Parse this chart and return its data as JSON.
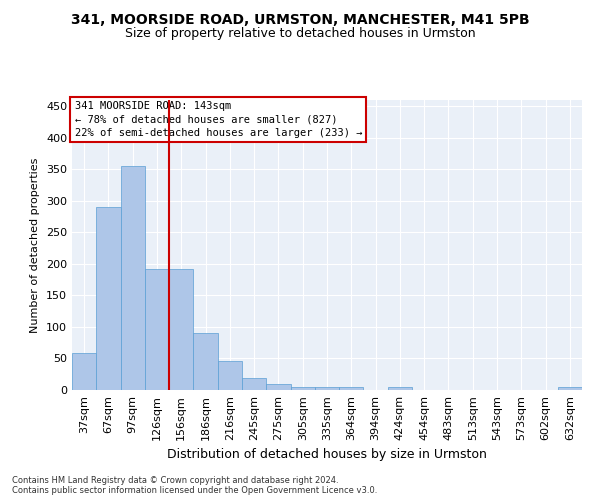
{
  "title1": "341, MOORSIDE ROAD, URMSTON, MANCHESTER, M41 5PB",
  "title2": "Size of property relative to detached houses in Urmston",
  "xlabel": "Distribution of detached houses by size in Urmston",
  "ylabel": "Number of detached properties",
  "footer": "Contains HM Land Registry data © Crown copyright and database right 2024.\nContains public sector information licensed under the Open Government Licence v3.0.",
  "categories": [
    "37sqm",
    "67sqm",
    "97sqm",
    "126sqm",
    "156sqm",
    "186sqm",
    "216sqm",
    "245sqm",
    "275sqm",
    "305sqm",
    "335sqm",
    "364sqm",
    "394sqm",
    "424sqm",
    "454sqm",
    "483sqm",
    "513sqm",
    "543sqm",
    "573sqm",
    "602sqm",
    "632sqm"
  ],
  "values": [
    58,
    290,
    355,
    192,
    192,
    90,
    46,
    19,
    9,
    5,
    5,
    5,
    0,
    5,
    0,
    0,
    0,
    0,
    0,
    0,
    5
  ],
  "bar_color": "#aec6e8",
  "bar_edgecolor": "#5a9fd4",
  "vline_x": 3.5,
  "vline_color": "#cc0000",
  "annotation_text": "341 MOORSIDE ROAD: 143sqm\n← 78% of detached houses are smaller (827)\n22% of semi-detached houses are larger (233) →",
  "annotation_box_color": "#ffffff",
  "annotation_box_edgecolor": "#cc0000",
  "ylim": [
    0,
    460
  ],
  "yticks": [
    0,
    50,
    100,
    150,
    200,
    250,
    300,
    350,
    400,
    450
  ],
  "background_color": "#eaf0f8",
  "grid_color": "#ffffff",
  "title1_fontsize": 10,
  "title2_fontsize": 9,
  "xlabel_fontsize": 9,
  "ylabel_fontsize": 8,
  "annotation_fontsize": 7.5,
  "footer_fontsize": 6
}
